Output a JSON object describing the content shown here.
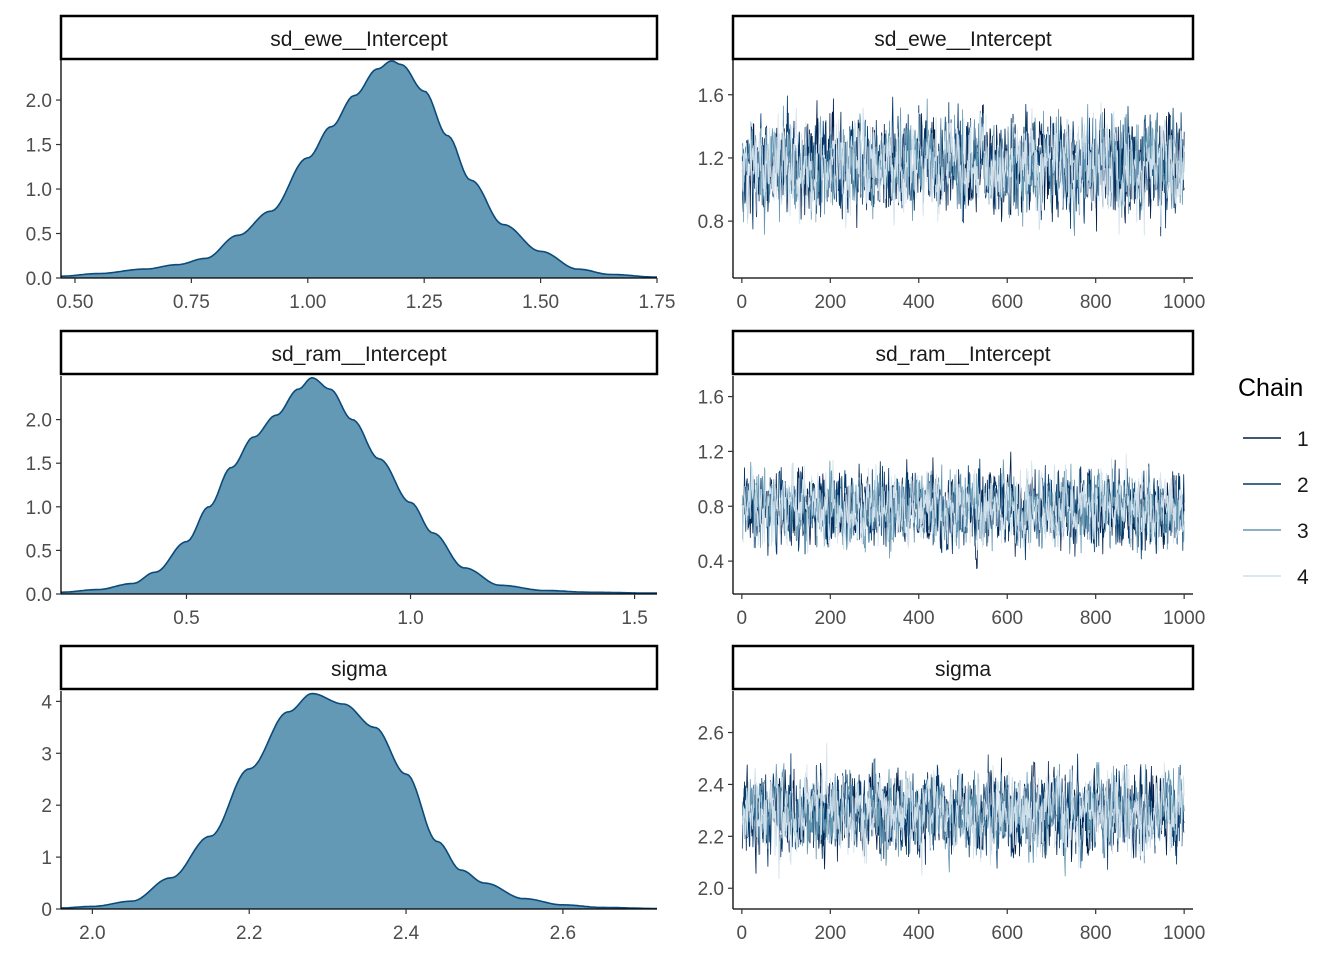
{
  "colors": {
    "density_fill": "#6499b5",
    "density_line": "#0b4a7a",
    "chains": [
      "#011f4b",
      "#03396c",
      "#6497b1",
      "#d1e1ec"
    ],
    "axis": "#000000",
    "tick_label": "#4d4d4d"
  },
  "legend": {
    "title": "Chain",
    "labels": [
      "1",
      "2",
      "3",
      "4"
    ]
  },
  "chart_data": [
    {
      "id": "dens-sd-ewe",
      "type": "area",
      "title": "sd_ewe__Intercept",
      "xlim": [
        0.47,
        1.75
      ],
      "ylim": [
        0,
        2.45
      ],
      "xticks": [
        0.5,
        0.75,
        1.0,
        1.25,
        1.5,
        1.75
      ],
      "xtick_labels": [
        "0.50",
        "0.75",
        "1.00",
        "1.25",
        "1.50",
        "1.75"
      ],
      "yticks": [
        0,
        0.5,
        1.0,
        1.5,
        2.0
      ],
      "ytick_labels": [
        "0.0",
        "0.5",
        "1.0",
        "1.5",
        "2.0"
      ],
      "x": [
        0.47,
        0.55,
        0.65,
        0.72,
        0.78,
        0.85,
        0.92,
        1.0,
        1.05,
        1.1,
        1.15,
        1.18,
        1.2,
        1.25,
        1.3,
        1.35,
        1.42,
        1.5,
        1.58,
        1.65,
        1.75
      ],
      "y": [
        0.02,
        0.05,
        0.1,
        0.15,
        0.22,
        0.48,
        0.75,
        1.35,
        1.7,
        2.05,
        2.35,
        2.44,
        2.4,
        2.1,
        1.6,
        1.1,
        0.6,
        0.3,
        0.1,
        0.04,
        0.01
      ]
    },
    {
      "id": "trace-sd-ewe",
      "type": "line",
      "title": "sd_ewe__Intercept",
      "xlim": [
        -20,
        1020
      ],
      "ylim": [
        0.44,
        1.82
      ],
      "xticks": [
        0,
        200,
        400,
        600,
        800,
        1000
      ],
      "xtick_labels": [
        "0",
        "200",
        "400",
        "600",
        "800",
        "1000"
      ],
      "yticks": [
        0.8,
        1.2,
        1.6
      ],
      "ytick_labels": [
        "0.8",
        "1.2",
        "1.6"
      ],
      "x": [
        1,
        1000
      ],
      "series_center": 1.15,
      "series_spread": 0.17,
      "series_min": 0.5,
      "series_max": 1.76,
      "series": [
        {
          "name": "1",
          "points": 1000
        },
        {
          "name": "2",
          "points": 1000
        },
        {
          "name": "3",
          "points": 1000
        },
        {
          "name": "4",
          "points": 1000
        }
      ]
    },
    {
      "id": "dens-sd-ram",
      "type": "area",
      "title": "sd_ram__Intercept",
      "xlim": [
        0.22,
        1.55
      ],
      "ylim": [
        0,
        2.5
      ],
      "xticks": [
        0.5,
        1.0,
        1.5
      ],
      "xtick_labels": [
        "0.5",
        "1.0",
        "1.5"
      ],
      "yticks": [
        0,
        0.5,
        1.0,
        1.5,
        2.0
      ],
      "ytick_labels": [
        "0.0",
        "0.5",
        "1.0",
        "1.5",
        "2.0"
      ],
      "x": [
        0.22,
        0.3,
        0.38,
        0.43,
        0.5,
        0.55,
        0.6,
        0.65,
        0.7,
        0.75,
        0.78,
        0.82,
        0.87,
        0.93,
        1.0,
        1.05,
        1.12,
        1.2,
        1.3,
        1.4,
        1.55
      ],
      "y": [
        0.02,
        0.05,
        0.12,
        0.25,
        0.6,
        1.0,
        1.45,
        1.8,
        2.05,
        2.35,
        2.48,
        2.35,
        2.0,
        1.55,
        1.05,
        0.7,
        0.3,
        0.1,
        0.04,
        0.02,
        0.01
      ]
    },
    {
      "id": "trace-sd-ram",
      "type": "line",
      "title": "sd_ram__Intercept",
      "xlim": [
        -20,
        1020
      ],
      "ylim": [
        0.16,
        1.75
      ],
      "xticks": [
        0,
        200,
        400,
        600,
        800,
        1000
      ],
      "xtick_labels": [
        "0",
        "200",
        "400",
        "600",
        "800",
        "1000"
      ],
      "yticks": [
        0.4,
        0.8,
        1.2,
        1.6
      ],
      "ytick_labels": [
        "0.4",
        "0.8",
        "1.2",
        "1.6"
      ],
      "x": [
        1,
        1000
      ],
      "series_center": 0.78,
      "series_spread": 0.16,
      "series_min": 0.2,
      "series_max": 1.53,
      "series": [
        {
          "name": "1",
          "points": 1000
        },
        {
          "name": "2",
          "points": 1000
        },
        {
          "name": "3",
          "points": 1000
        },
        {
          "name": "4",
          "points": 1000
        }
      ]
    },
    {
      "id": "dens-sigma",
      "type": "area",
      "title": "sigma",
      "xlim": [
        1.96,
        2.72
      ],
      "ylim": [
        0,
        4.2
      ],
      "xticks": [
        2.0,
        2.2,
        2.4,
        2.6
      ],
      "xtick_labels": [
        "2.0",
        "2.2",
        "2.4",
        "2.6"
      ],
      "yticks": [
        0,
        1,
        2,
        3,
        4
      ],
      "ytick_labels": [
        "0",
        "1",
        "2",
        "3",
        "4"
      ],
      "x": [
        1.96,
        2.0,
        2.05,
        2.1,
        2.15,
        2.2,
        2.25,
        2.28,
        2.32,
        2.36,
        2.4,
        2.44,
        2.47,
        2.5,
        2.55,
        2.6,
        2.65,
        2.72
      ],
      "y": [
        0.02,
        0.05,
        0.15,
        0.6,
        1.4,
        2.7,
        3.8,
        4.15,
        3.95,
        3.5,
        2.6,
        1.3,
        0.75,
        0.5,
        0.2,
        0.08,
        0.03,
        0.01
      ]
    },
    {
      "id": "trace-sigma",
      "type": "line",
      "title": "sigma",
      "xlim": [
        -20,
        1020
      ],
      "ylim": [
        1.92,
        2.76
      ],
      "xticks": [
        0,
        200,
        400,
        600,
        800,
        1000
      ],
      "xtick_labels": [
        "0",
        "200",
        "400",
        "600",
        "800",
        "1000"
      ],
      "yticks": [
        2.0,
        2.2,
        2.4,
        2.6
      ],
      "ytick_labels": [
        "2.0",
        "2.2",
        "2.4",
        "2.6"
      ],
      "x": [
        1,
        1000
      ],
      "series_center": 2.29,
      "series_spread": 0.09,
      "series_min": 1.96,
      "series_max": 2.73,
      "series": [
        {
          "name": "1",
          "points": 1000
        },
        {
          "name": "2",
          "points": 1000
        },
        {
          "name": "3",
          "points": 1000
        },
        {
          "name": "4",
          "points": 1000
        }
      ]
    }
  ]
}
